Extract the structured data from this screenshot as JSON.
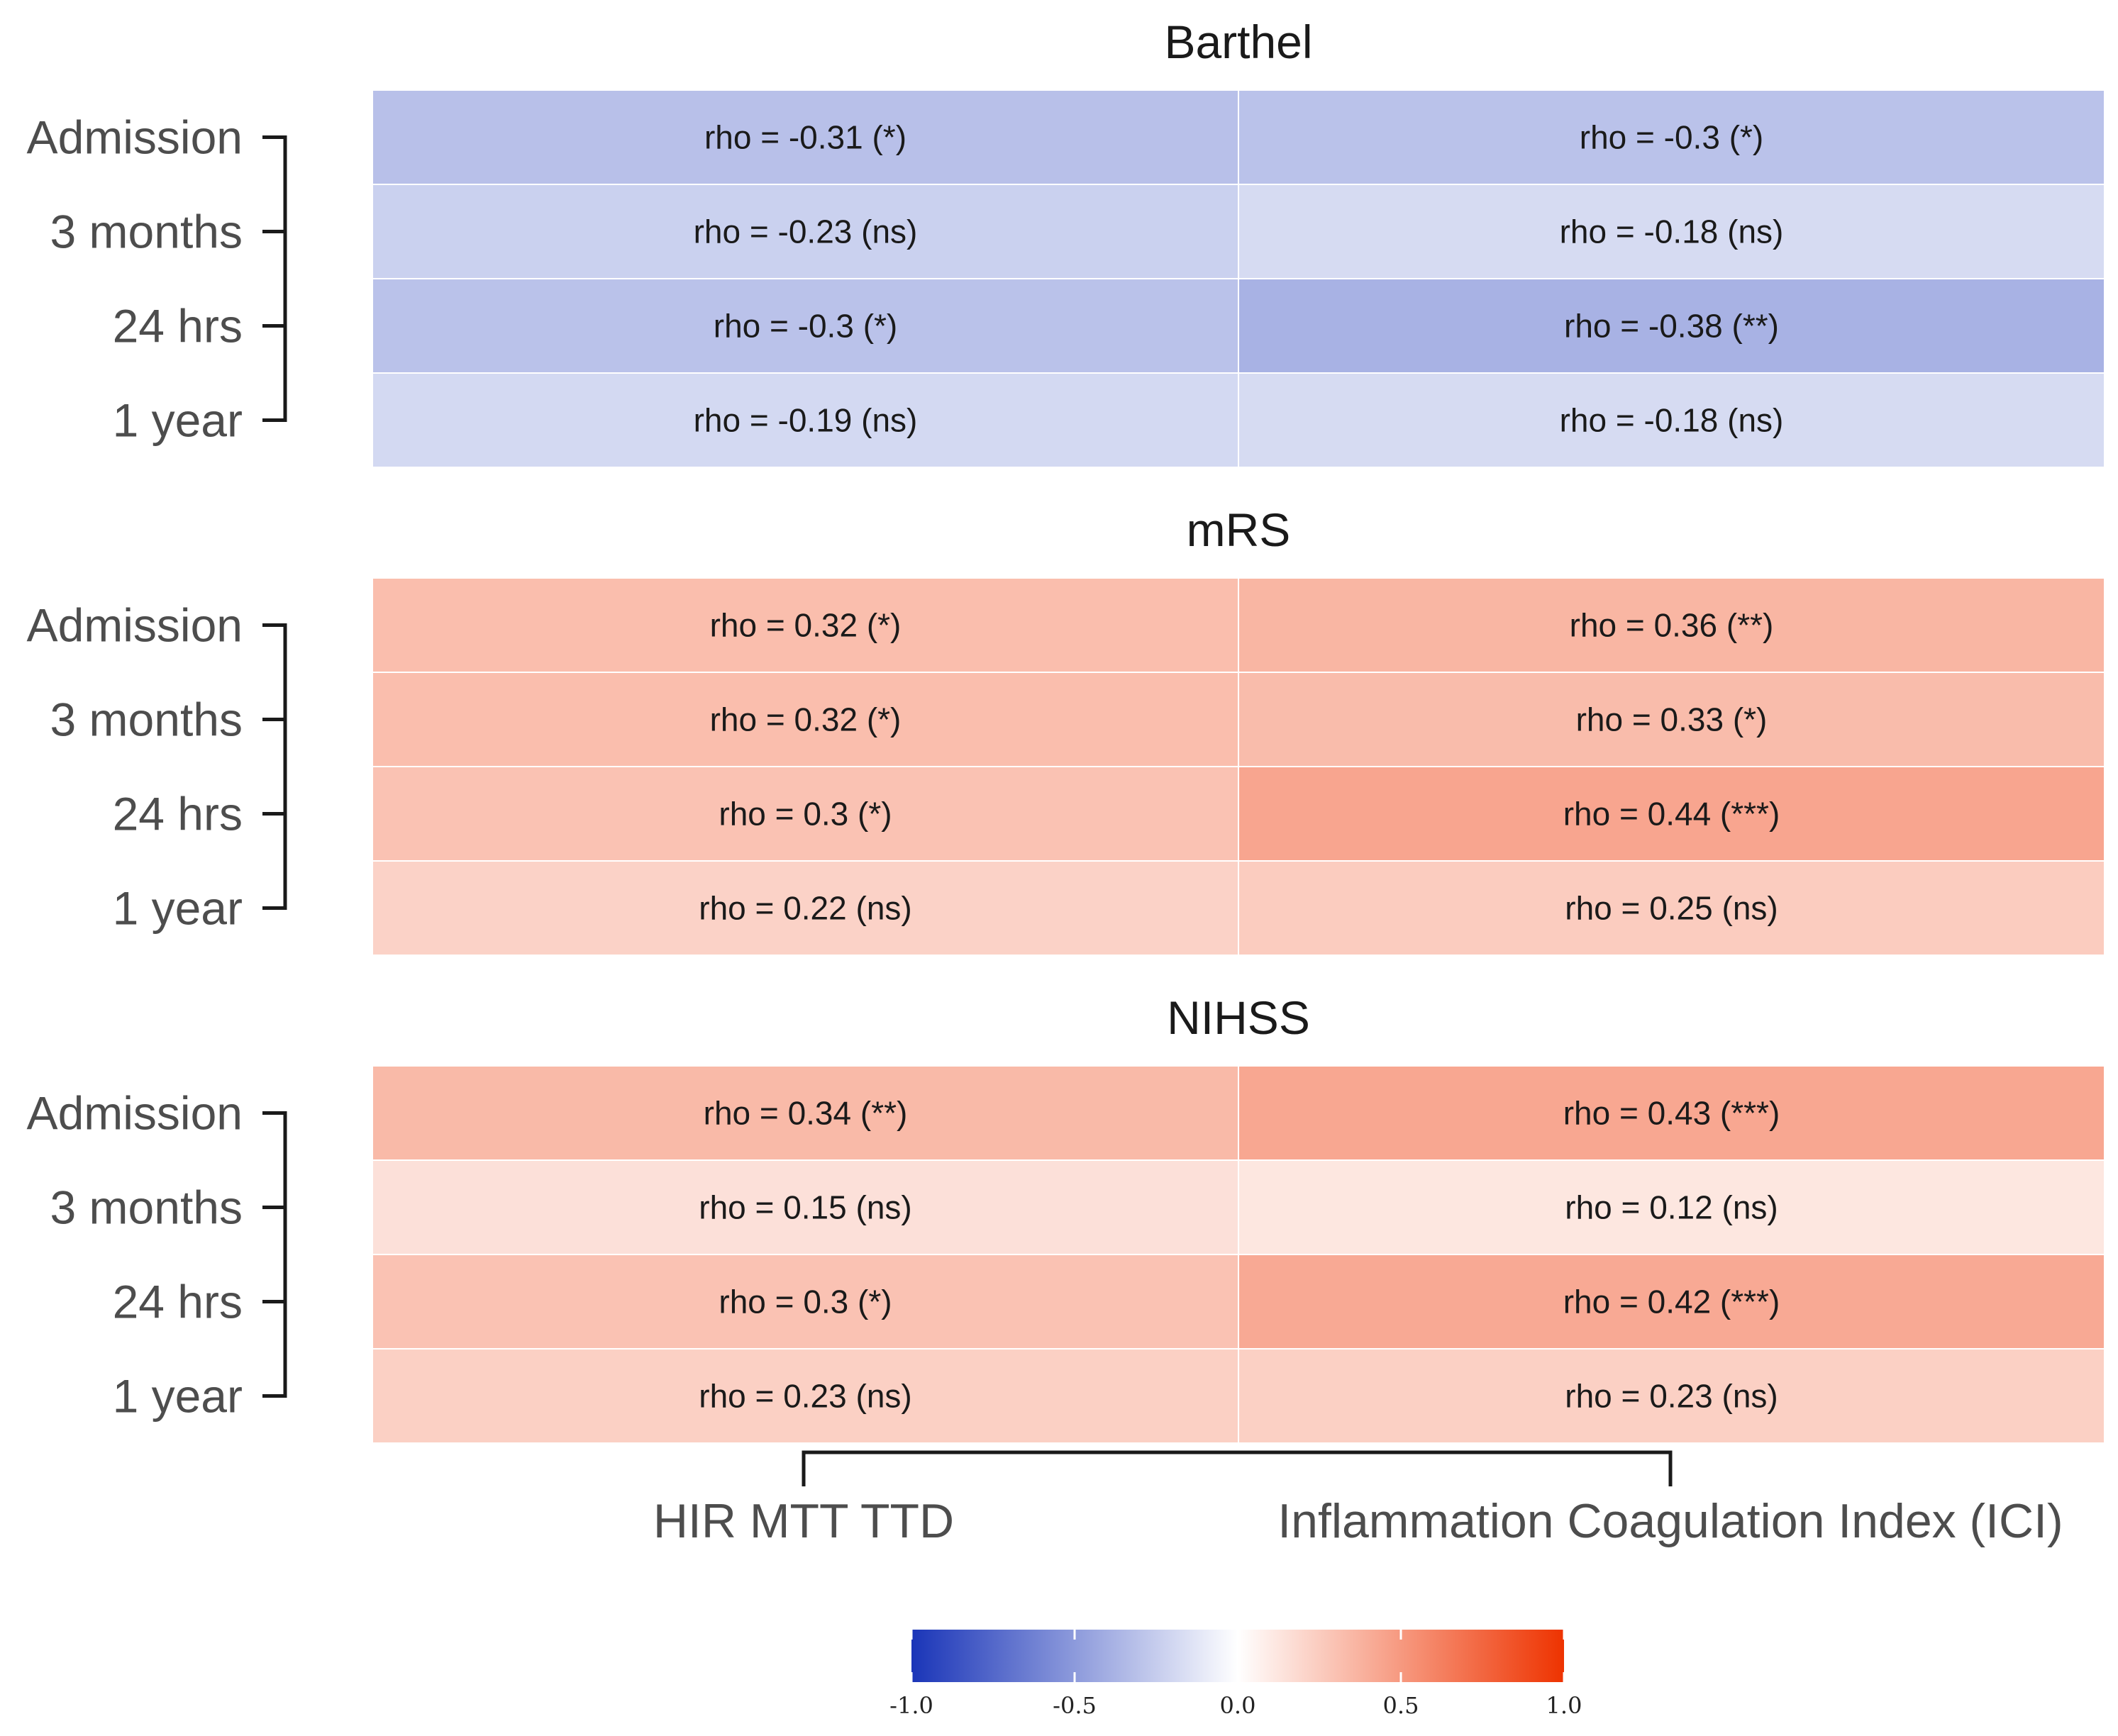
{
  "chart_data": {
    "type": "heatmap",
    "columns": [
      "HIR MTT TTD",
      "Inflammation Coagulation Index (ICI)"
    ],
    "rows": [
      "Admission",
      "3 months",
      "24 hrs",
      "1 year"
    ],
    "panels": [
      {
        "title": "Barthel",
        "values": [
          [
            -0.31,
            -0.3
          ],
          [
            -0.23,
            -0.18
          ],
          [
            -0.3,
            -0.38
          ],
          [
            -0.19,
            -0.18
          ]
        ],
        "labels": [
          [
            "rho = -0.31 (*)",
            "rho = -0.3 (*)"
          ],
          [
            "rho = -0.23 (ns)",
            "rho = -0.18 (ns)"
          ],
          [
            "rho = -0.3 (*)",
            "rho = -0.38 (**)"
          ],
          [
            "rho = -0.19 (ns)",
            "rho = -0.18 (ns)"
          ]
        ]
      },
      {
        "title": "mRS",
        "values": [
          [
            0.32,
            0.36
          ],
          [
            0.32,
            0.33
          ],
          [
            0.3,
            0.44
          ],
          [
            0.22,
            0.25
          ]
        ],
        "labels": [
          [
            "rho = 0.32 (*)",
            "rho = 0.36 (**)"
          ],
          [
            "rho = 0.32 (*)",
            "rho = 0.33 (*)"
          ],
          [
            "rho = 0.3 (*)",
            "rho = 0.44 (***)"
          ],
          [
            "rho = 0.22 (ns)",
            "rho = 0.25 (ns)"
          ]
        ]
      },
      {
        "title": "NIHSS",
        "values": [
          [
            0.34,
            0.43
          ],
          [
            0.15,
            0.12
          ],
          [
            0.3,
            0.42
          ],
          [
            0.23,
            0.23
          ]
        ],
        "labels": [
          [
            "rho = 0.34 (**)",
            "rho = 0.43 (***)"
          ],
          [
            "rho = 0.15 (ns)",
            "rho = 0.12 (ns)"
          ],
          [
            "rho = 0.3 (*)",
            "rho = 0.42 (***)"
          ],
          [
            "rho = 0.23 (ns)",
            "rho = 0.23 (ns)"
          ]
        ]
      }
    ],
    "colorbar": {
      "range": [
        -1.0,
        1.0
      ],
      "ticks": [
        "-1.0",
        "-0.5",
        "0.0",
        "0.5",
        "1.0"
      ],
      "low_color": "#1a35b8",
      "mid_color": "#ffffff",
      "high_color": "#ee3300"
    }
  }
}
